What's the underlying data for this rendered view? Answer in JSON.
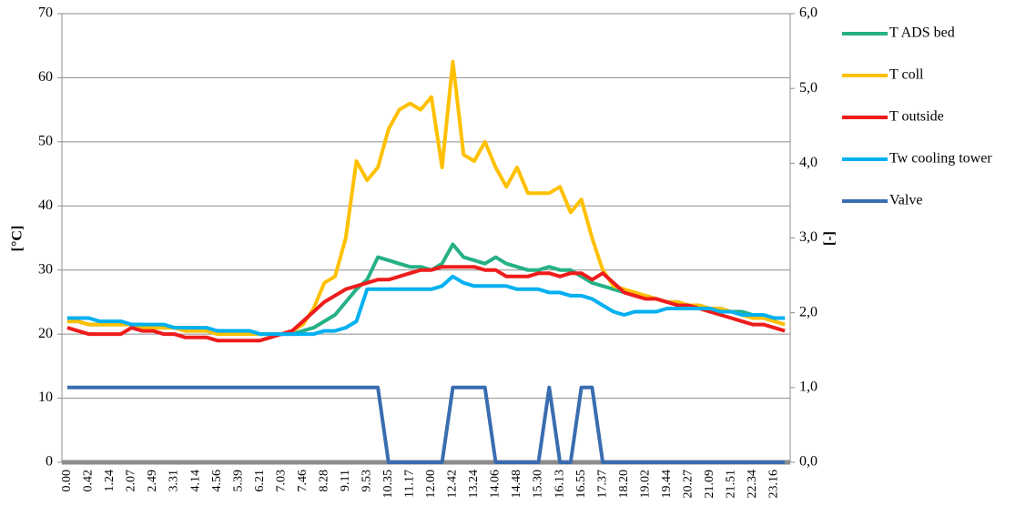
{
  "chart_data": {
    "type": "line",
    "y_label": "[°C]",
    "y2_label": "[-]",
    "categories": [
      "0.00",
      null,
      "0.42",
      null,
      "1.24",
      null,
      "2.07",
      null,
      "2.49",
      null,
      "3.31",
      null,
      "4.14",
      null,
      "4.56",
      null,
      "5.39",
      null,
      "6.21",
      null,
      "7.03",
      null,
      "7.46",
      null,
      "8.28",
      null,
      "9.11",
      null,
      "9.53",
      null,
      "10.35",
      null,
      "11.17",
      null,
      "12.00",
      null,
      "12.42",
      null,
      "13.24",
      null,
      "14.06",
      null,
      "14.48",
      null,
      "15.30",
      null,
      "16.13",
      null,
      "16.55",
      null,
      "17.37",
      null,
      "18.20",
      null,
      "19.02",
      null,
      "19.44",
      null,
      "20.27",
      null,
      "21.09",
      null,
      "21.51",
      null,
      "22.34",
      null,
      "23.16",
      null
    ],
    "series": [
      {
        "name": "T ADS bed",
        "color": "#26b086",
        "values": [
          22,
          22,
          21.5,
          21.5,
          21.5,
          21.5,
          21.5,
          21.5,
          21,
          21,
          21,
          21,
          21,
          20.5,
          20.5,
          20.5,
          20.5,
          20.5,
          20,
          20,
          20,
          20,
          20.5,
          21,
          22,
          23,
          25,
          27,
          28.5,
          32,
          31.5,
          31,
          30.5,
          30.5,
          30,
          31,
          34,
          32,
          31.5,
          31,
          32,
          31,
          30.5,
          30,
          30,
          30.5,
          30,
          30,
          29,
          28,
          27.5,
          27,
          26.5,
          26,
          26,
          25.5,
          25,
          25,
          24.5,
          24.5,
          24,
          24,
          23.5,
          23.5,
          23,
          23,
          22.5,
          22.5
        ]
      },
      {
        "name": "T coll",
        "color": "#ffc000",
        "values": [
          22,
          22,
          21.5,
          21.5,
          21.5,
          21.5,
          21.5,
          21,
          21,
          21,
          21,
          20.5,
          20.5,
          20.5,
          20,
          20,
          20,
          20,
          20,
          20,
          20,
          20.5,
          21.5,
          24,
          28,
          29,
          35,
          47,
          44,
          46,
          52,
          55,
          56,
          55,
          57,
          46,
          62.5,
          48,
          47,
          50,
          46,
          43,
          46,
          42,
          42,
          42,
          43,
          39,
          41,
          35,
          30,
          27.5,
          27,
          26.5,
          26,
          25.5,
          25,
          25,
          24.5,
          24.5,
          24,
          24,
          23.5,
          23,
          22.5,
          22.5,
          22,
          21.5
        ]
      },
      {
        "name": "T outside",
        "color": "#ee1c1c",
        "values": [
          21,
          20.5,
          20,
          20,
          20,
          20,
          21,
          20.5,
          20.5,
          20,
          20,
          19.5,
          19.5,
          19.5,
          19,
          19,
          19,
          19,
          19,
          19.5,
          20,
          20.5,
          22,
          23.5,
          25,
          26,
          27,
          27.5,
          28,
          28.5,
          28.5,
          29,
          29.5,
          30,
          30,
          30.5,
          30.5,
          30.5,
          30.5,
          30,
          30,
          29,
          29,
          29,
          29.5,
          29.5,
          29,
          29.5,
          29.5,
          28.5,
          29.5,
          28,
          26.5,
          26,
          25.5,
          25.5,
          25,
          24.5,
          24.5,
          24,
          23.5,
          23,
          22.5,
          22,
          21.5,
          21.5,
          21,
          20.5
        ]
      },
      {
        "name": "Tw cooling tower",
        "color": "#00b0f0",
        "values": [
          22.5,
          22.5,
          22.5,
          22,
          22,
          22,
          21.5,
          21.5,
          21.5,
          21.5,
          21,
          21,
          21,
          21,
          20.5,
          20.5,
          20.5,
          20.5,
          20,
          20,
          20,
          20,
          20,
          20,
          20.5,
          20.5,
          21,
          22,
          27,
          27,
          27,
          27,
          27,
          27,
          27,
          27.5,
          29,
          28,
          27.5,
          27.5,
          27.5,
          27.5,
          27,
          27,
          27,
          26.5,
          26.5,
          26,
          26,
          25.5,
          24.5,
          23.5,
          23,
          23.5,
          23.5,
          23.5,
          24,
          24,
          24,
          24,
          24,
          23.5,
          23.5,
          23,
          23,
          23,
          22.5,
          22.5
        ]
      },
      {
        "name": "Valve",
        "color": "#3a6db0",
        "axis": "y2",
        "values": [
          1,
          1,
          1,
          1,
          1,
          1,
          1,
          1,
          1,
          1,
          1,
          1,
          1,
          1,
          1,
          1,
          1,
          1,
          1,
          1,
          1,
          1,
          1,
          1,
          1,
          1,
          1,
          1,
          1,
          1,
          0,
          0,
          0,
          0,
          0,
          0,
          1,
          1,
          1,
          1,
          0,
          0,
          0,
          0,
          0,
          1,
          0,
          0,
          1,
          1,
          0,
          0,
          0,
          0,
          0,
          0,
          0,
          0,
          0,
          0,
          0,
          0,
          0,
          0,
          0,
          0,
          0,
          0
        ]
      }
    ],
    "ylim": [
      0,
      70
    ],
    "yticks": [
      0,
      10,
      20,
      30,
      40,
      50,
      60,
      70
    ],
    "y2lim": [
      0,
      6
    ],
    "y2ticks": [
      {
        "value": 0,
        "label": "0,0"
      },
      {
        "value": 1,
        "label": "1,0"
      },
      {
        "value": 2,
        "label": "2,0"
      },
      {
        "value": 3,
        "label": "3,0"
      },
      {
        "value": 4,
        "label": "4,0"
      },
      {
        "value": 5,
        "label": "5,0"
      },
      {
        "value": 6,
        "label": "6,0"
      }
    ],
    "grid": true,
    "legend": "right"
  }
}
